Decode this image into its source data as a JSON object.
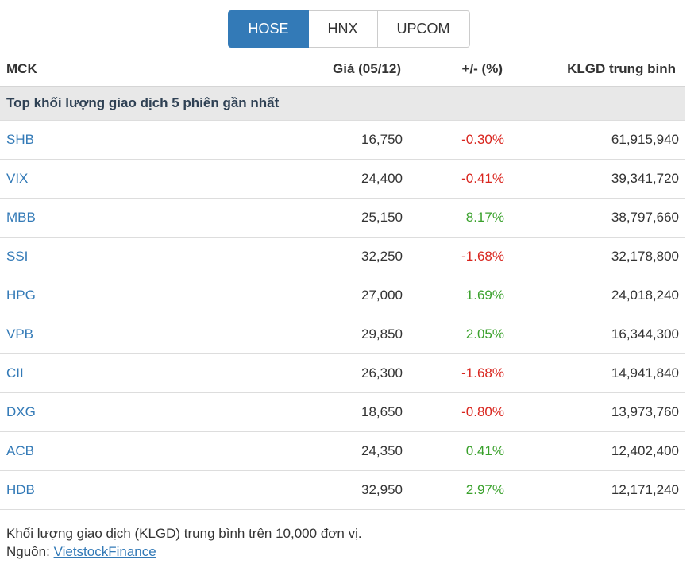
{
  "tabs": [
    {
      "label": "HOSE",
      "active": true
    },
    {
      "label": "HNX",
      "active": false
    },
    {
      "label": "UPCOM",
      "active": false
    }
  ],
  "table": {
    "columns": [
      "MCK",
      "Giá (05/12)",
      "+/- (%)",
      "KLGD trung bình"
    ],
    "section_title": "Top khối lượng giao dịch 5 phiên gần nhất",
    "rows": [
      {
        "ticker": "SHB",
        "price": "16,750",
        "change": "-0.30%",
        "direction": "down",
        "volume": "61,915,940"
      },
      {
        "ticker": "VIX",
        "price": "24,400",
        "change": "-0.41%",
        "direction": "down",
        "volume": "39,341,720"
      },
      {
        "ticker": "MBB",
        "price": "25,150",
        "change": "8.17%",
        "direction": "up",
        "volume": "38,797,660"
      },
      {
        "ticker": "SSI",
        "price": "32,250",
        "change": "-1.68%",
        "direction": "down",
        "volume": "32,178,800"
      },
      {
        "ticker": "HPG",
        "price": "27,000",
        "change": "1.69%",
        "direction": "up",
        "volume": "24,018,240"
      },
      {
        "ticker": "VPB",
        "price": "29,850",
        "change": "2.05%",
        "direction": "up",
        "volume": "16,344,300"
      },
      {
        "ticker": "CII",
        "price": "26,300",
        "change": "-1.68%",
        "direction": "down",
        "volume": "14,941,840"
      },
      {
        "ticker": "DXG",
        "price": "18,650",
        "change": "-0.80%",
        "direction": "down",
        "volume": "13,973,760"
      },
      {
        "ticker": "ACB",
        "price": "24,350",
        "change": "0.41%",
        "direction": "up",
        "volume": "12,402,400"
      },
      {
        "ticker": "HDB",
        "price": "32,950",
        "change": "2.97%",
        "direction": "up",
        "volume": "12,171,240"
      }
    ]
  },
  "footer": {
    "note": "Khối lượng giao dịch (KLGD) trung bình trên 10,000 đơn vị.",
    "source_label": "Nguồn:",
    "source_link": "VietstockFinance"
  },
  "colors": {
    "accent": "#337ab7",
    "up": "#3aa12c",
    "down": "#d9261f",
    "section_bg": "#e8e8e8",
    "border": "#dddddd"
  }
}
